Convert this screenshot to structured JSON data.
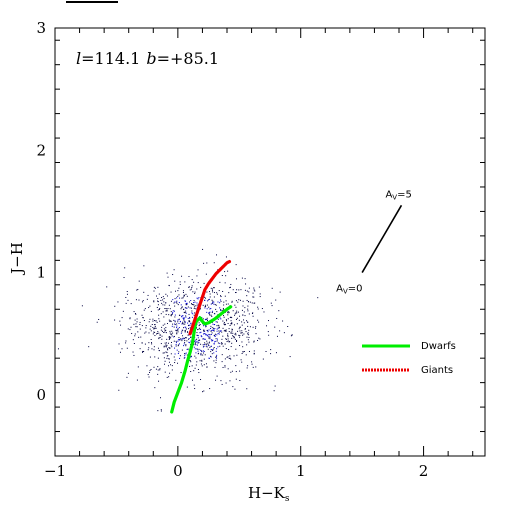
{
  "chart_data": {
    "type": "scatter",
    "title": "",
    "xlabel": "H−K",
    "xlabel_subscript": "s",
    "ylabel": "J−H",
    "xlim": [
      -1,
      2.5
    ],
    "ylim": [
      -0.5,
      3
    ],
    "x_ticks": [
      -1,
      0,
      1,
      2
    ],
    "y_ticks": [
      0,
      1,
      2,
      3
    ],
    "x_tick_labels": [
      "−1",
      "0",
      "1",
      "2"
    ],
    "y_tick_labels": [
      "0",
      "1",
      "2",
      "3"
    ],
    "annotation": {
      "l_symbol": "l",
      "l_value": "=114.1",
      "b_symbol": "b",
      "b_value": "=+85.1"
    },
    "reddening_vector": {
      "start": [
        1.5,
        1.0
      ],
      "end": [
        1.82,
        1.55
      ],
      "label_start_main": "A",
      "label_start_sub": "V",
      "label_start_value": "=0",
      "label_end_main": "A",
      "label_end_sub": "V",
      "label_end_value": "=5"
    },
    "series": [
      {
        "name": "Dwarfs",
        "color": "#00ee00",
        "points": [
          [
            -0.05,
            -0.14
          ],
          [
            -0.03,
            -0.06
          ],
          [
            0.0,
            0.02
          ],
          [
            0.03,
            0.1
          ],
          [
            0.06,
            0.2
          ],
          [
            0.08,
            0.28
          ],
          [
            0.1,
            0.35
          ],
          [
            0.12,
            0.43
          ],
          [
            0.13,
            0.5
          ],
          [
            0.14,
            0.56
          ],
          [
            0.15,
            0.6
          ],
          [
            0.18,
            0.63
          ],
          [
            0.2,
            0.6
          ],
          [
            0.22,
            0.58
          ],
          [
            0.25,
            0.59
          ],
          [
            0.3,
            0.62
          ],
          [
            0.35,
            0.66
          ],
          [
            0.4,
            0.7
          ],
          [
            0.43,
            0.72
          ]
        ]
      },
      {
        "name": "Giants",
        "color": "#ee0000",
        "points": [
          [
            0.1,
            0.5
          ],
          [
            0.12,
            0.56
          ],
          [
            0.14,
            0.62
          ],
          [
            0.16,
            0.68
          ],
          [
            0.18,
            0.74
          ],
          [
            0.2,
            0.8
          ],
          [
            0.22,
            0.86
          ],
          [
            0.25,
            0.91
          ],
          [
            0.28,
            0.95
          ],
          [
            0.31,
            0.99
          ],
          [
            0.34,
            1.02
          ],
          [
            0.37,
            1.05
          ],
          [
            0.4,
            1.08
          ],
          [
            0.42,
            1.09
          ]
        ]
      }
    ],
    "scatter_field": {
      "color": "#000080",
      "center": [
        0.15,
        0.55
      ],
      "spread": [
        0.28,
        0.2
      ],
      "count": 1200
    }
  }
}
